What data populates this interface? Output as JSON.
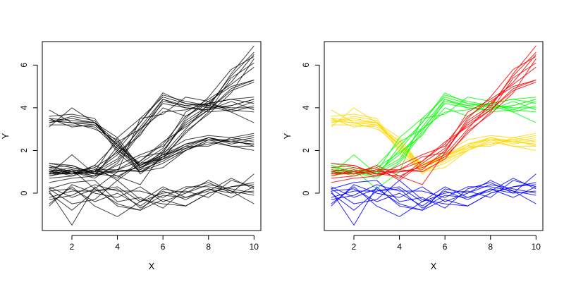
{
  "chart_data": [
    {
      "type": "line",
      "title": "",
      "xlabel": "X",
      "ylabel": "Y",
      "xlim": [
        0.7,
        10.3
      ],
      "ylim": [
        -1.75,
        7.1
      ],
      "x_ticks": [
        2,
        4,
        6,
        8,
        10
      ],
      "y_ticks": [
        0,
        2,
        4,
        6
      ],
      "colored": false,
      "x": [
        1,
        2,
        3,
        4,
        5,
        6,
        7,
        8,
        9,
        10
      ],
      "groups": [
        {
          "color": "#ffd700",
          "series": [
            [
              3.4,
              3.3,
              3.2,
              2.3,
              1.2,
              1.6,
              2.0,
              2.5,
              2.4,
              2.3
            ],
            [
              3.3,
              3.5,
              3.3,
              2.2,
              1.1,
              1.5,
              2.1,
              2.3,
              2.5,
              2.2
            ],
            [
              3.5,
              3.4,
              3.3,
              2.4,
              1.3,
              1.7,
              2.2,
              2.6,
              2.4,
              2.6
            ],
            [
              3.2,
              3.2,
              3.1,
              2.1,
              1.0,
              1.4,
              2.0,
              2.4,
              2.2,
              2.0
            ],
            [
              3.6,
              3.7,
              3.5,
              2.0,
              1.3,
              1.9,
              2.5,
              2.7,
              2.6,
              2.8
            ],
            [
              3.9,
              3.3,
              3.3,
              2.6,
              1.2,
              1.8,
              2.3,
              2.6,
              2.3,
              2.5
            ],
            [
              3.1,
              4.0,
              3.3,
              2.2,
              1.4,
              1.6,
              2.2,
              2.2,
              2.6,
              2.4
            ],
            [
              3.4,
              3.3,
              3.0,
              2.5,
              0.9,
              1.7,
              2.3,
              2.5,
              2.2,
              2.2
            ],
            [
              3.3,
              3.6,
              3.4,
              1.9,
              1.0,
              1.2,
              2.0,
              2.5,
              2.5,
              2.7
            ],
            [
              3.5,
              3.1,
              3.2,
              2.3,
              1.3,
              1.8,
              2.1,
              2.6,
              2.4,
              2.3
            ]
          ]
        },
        {
          "color": "#00ff00",
          "series": [
            [
              1.0,
              0.9,
              1.0,
              2.6,
              3.5,
              4.5,
              4.2,
              4.0,
              4.1,
              4.4
            ],
            [
              1.3,
              1.0,
              0.8,
              2.2,
              3.3,
              4.7,
              4.2,
              4.1,
              3.8,
              4.1
            ],
            [
              0.9,
              1.1,
              1.0,
              1.8,
              3.0,
              4.2,
              4.0,
              3.9,
              4.3,
              3.9
            ],
            [
              1.4,
              1.2,
              0.9,
              1.5,
              2.9,
              4.4,
              4.1,
              4.2,
              3.9,
              3.8
            ],
            [
              0.8,
              1.0,
              0.7,
              1.4,
              2.8,
              4.0,
              3.6,
              4.2,
              4.4,
              4.5
            ],
            [
              1.2,
              0.9,
              1.2,
              1.9,
              2.7,
              4.3,
              4.1,
              3.8,
              3.9,
              4.3
            ],
            [
              0.9,
              1.8,
              0.9,
              2.0,
              3.3,
              4.6,
              4.3,
              4.1,
              4.0,
              4.0
            ],
            [
              1.1,
              0.8,
              1.3,
              2.4,
              3.0,
              3.8,
              3.9,
              4.2,
              4.4,
              4.2
            ],
            [
              1.0,
              1.1,
              0.2,
              1.0,
              3.5,
              3.7,
              4.5,
              4.3,
              3.8,
              3.3
            ],
            [
              1.3,
              0.9,
              1.0,
              1.6,
              3.1,
              4.4,
              4.0,
              3.9,
              4.1,
              4.4
            ]
          ]
        },
        {
          "color": "#ff0000",
          "series": [
            [
              0.9,
              1.0,
              0.9,
              0.8,
              1.3,
              1.8,
              3.0,
              4.2,
              5.2,
              6.5
            ],
            [
              1.0,
              1.2,
              1.0,
              1.0,
              1.1,
              2.0,
              3.3,
              4.0,
              5.6,
              6.9
            ],
            [
              0.7,
              0.8,
              1.1,
              0.7,
              1.5,
              2.3,
              3.6,
              4.3,
              5.0,
              5.3
            ],
            [
              1.2,
              1.3,
              0.9,
              1.0,
              1.2,
              1.7,
              2.8,
              3.8,
              5.4,
              6.1
            ],
            [
              0.9,
              0.9,
              1.1,
              1.1,
              1.7,
              1.9,
              3.5,
              4.5,
              5.8,
              6.4
            ],
            [
              0.5,
              0.7,
              0.8,
              1.3,
              1.8,
              2.2,
              3.2,
              3.9,
              4.9,
              5.3
            ],
            [
              1.1,
              1.0,
              1.2,
              0.6,
              1.4,
              2.1,
              3.8,
              4.4,
              5.1,
              5.9
            ],
            [
              0.8,
              1.1,
              0.8,
              1.1,
              1.0,
              1.6,
              2.9,
              3.7,
              4.7,
              6.3
            ],
            [
              1.0,
              0.9,
              1.3,
              0.8,
              0.4,
              1.9,
              3.4,
              4.1,
              5.5,
              6.6
            ],
            [
              1.4,
              1.3,
              0.9,
              1.1,
              1.5,
              2.4,
              3.1,
              3.9,
              4.8,
              5.2
            ]
          ]
        },
        {
          "color": "#0000ff",
          "series": [
            [
              0.2,
              -0.5,
              -0.3,
              0.6,
              -0.3,
              -0.5,
              -0.6,
              0.0,
              0.3,
              0.4
            ],
            [
              0.1,
              -1.5,
              0.3,
              -0.6,
              -0.8,
              0.2,
              0.0,
              0.6,
              0.1,
              -0.5
            ],
            [
              -0.5,
              0.3,
              -0.6,
              -1.1,
              -0.4,
              0.0,
              0.1,
              -0.2,
              0.6,
              0.3
            ],
            [
              0.2,
              0.5,
              0.6,
              -0.4,
              -0.2,
              -0.7,
              0.2,
              0.5,
              0.0,
              0.9
            ],
            [
              -0.2,
              0.1,
              0.1,
              0.3,
              -0.4,
              0.3,
              -0.2,
              0.1,
              0.7,
              0.2
            ],
            [
              0.0,
              -0.8,
              0.1,
              0.2,
              -0.7,
              -0.1,
              -0.2,
              0.2,
              0.0,
              0.1
            ],
            [
              0.3,
              -0.2,
              0.2,
              -0.5,
              -0.8,
              -0.3,
              -0.6,
              0.0,
              0.3,
              0.5
            ],
            [
              -0.3,
              -0.1,
              0.4,
              0.1,
              0.1,
              -0.2,
              0.3,
              0.3,
              0.1,
              -0.1
            ],
            [
              0.1,
              0.2,
              -0.4,
              0.0,
              -0.6,
              0.1,
              -0.3,
              0.2,
              -0.2,
              0.3
            ],
            [
              -0.6,
              0.4,
              0.0,
              -0.2,
              0.3,
              -0.4,
              0.0,
              0.4,
              0.2,
              0.0
            ]
          ]
        }
      ]
    },
    {
      "type": "line",
      "title": "",
      "xlabel": "X",
      "ylabel": "Y",
      "xlim": [
        0.7,
        10.3
      ],
      "ylim": [
        -1.75,
        7.1
      ],
      "x_ticks": [
        2,
        4,
        6,
        8,
        10
      ],
      "y_ticks": [
        0,
        2,
        4,
        6
      ],
      "colored": true,
      "same_data_as_panel": 0
    }
  ]
}
